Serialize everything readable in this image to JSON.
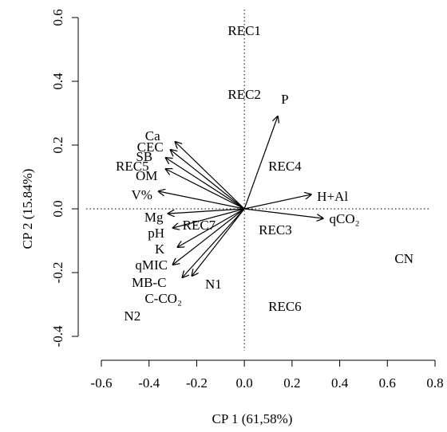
{
  "chart_data": {
    "type": "scatter",
    "title": "",
    "xlabel": "CP 1 (61,58%)",
    "ylabel": "CP 2 (15.84%)",
    "xlim": [
      -0.6,
      0.8
    ],
    "ylim": [
      -0.4,
      0.6
    ],
    "xticks": [
      "-0.6",
      "-0.4",
      "-0.2",
      "0.0",
      "0.2",
      "0.4",
      "0.6",
      "0.8"
    ],
    "yticks": [
      "-0.4",
      "-0.2",
      "0.0",
      "0.2",
      "0.4",
      "0.6"
    ],
    "grid": false,
    "reference_lines": [
      "x=0",
      "y=0"
    ],
    "points": [
      {
        "label": "REC1",
        "x": 0.0,
        "y": 0.56
      },
      {
        "label": "REC2",
        "x": 0.0,
        "y": 0.36
      },
      {
        "label": "REC4",
        "x": 0.17,
        "y": 0.135
      },
      {
        "label": "REC5",
        "x": -0.47,
        "y": 0.135
      },
      {
        "label": "REC7",
        "x": -0.19,
        "y": -0.05
      },
      {
        "label": "REC3",
        "x": 0.13,
        "y": -0.065
      },
      {
        "label": "N1",
        "x": -0.13,
        "y": -0.235
      },
      {
        "label": "REC6",
        "x": 0.17,
        "y": -0.305
      },
      {
        "label": "N2",
        "x": -0.47,
        "y": -0.335
      },
      {
        "label": "CN",
        "x": 0.67,
        "y": -0.155
      }
    ],
    "vectors": [
      {
        "label": "P",
        "x": 0.14,
        "y": 0.29,
        "label_x": 0.17,
        "label_y": 0.345
      },
      {
        "label": "H+Al",
        "x": 0.28,
        "y": 0.045,
        "label_x": 0.37,
        "label_y": 0.04
      },
      {
        "label": "qCO₂",
        "x": 0.33,
        "y": -0.03,
        "label_x": 0.42,
        "label_y": -0.03
      },
      {
        "label": "Ca",
        "x": -0.29,
        "y": 0.21,
        "label_x": -0.385,
        "label_y": 0.23
      },
      {
        "label": "CEC",
        "x": -0.31,
        "y": 0.185,
        "label_x": -0.395,
        "label_y": 0.195
      },
      {
        "label": "SB",
        "x": -0.33,
        "y": 0.16,
        "label_x": -0.42,
        "label_y": 0.165
      },
      {
        "label": "OM",
        "x": -0.33,
        "y": 0.125,
        "label_x": -0.41,
        "label_y": 0.105
      },
      {
        "label": "V%",
        "x": -0.36,
        "y": 0.055,
        "label_x": -0.43,
        "label_y": 0.045
      },
      {
        "label": "Mg",
        "x": -0.32,
        "y": -0.015,
        "label_x": -0.38,
        "label_y": -0.025
      },
      {
        "label": "pH",
        "x": -0.3,
        "y": -0.06,
        "label_x": -0.37,
        "label_y": -0.075
      },
      {
        "label": "K",
        "x": -0.28,
        "y": -0.12,
        "label_x": -0.355,
        "label_y": -0.125
      },
      {
        "label": "qMIC",
        "x": -0.3,
        "y": -0.175,
        "label_x": -0.39,
        "label_y": -0.175
      },
      {
        "label": "MB-C",
        "x": -0.26,
        "y": -0.215,
        "label_x": -0.4,
        "label_y": -0.23
      },
      {
        "label": "C-CO₂",
        "x": -0.22,
        "y": -0.21,
        "label_x": -0.34,
        "label_y": -0.28
      }
    ]
  }
}
